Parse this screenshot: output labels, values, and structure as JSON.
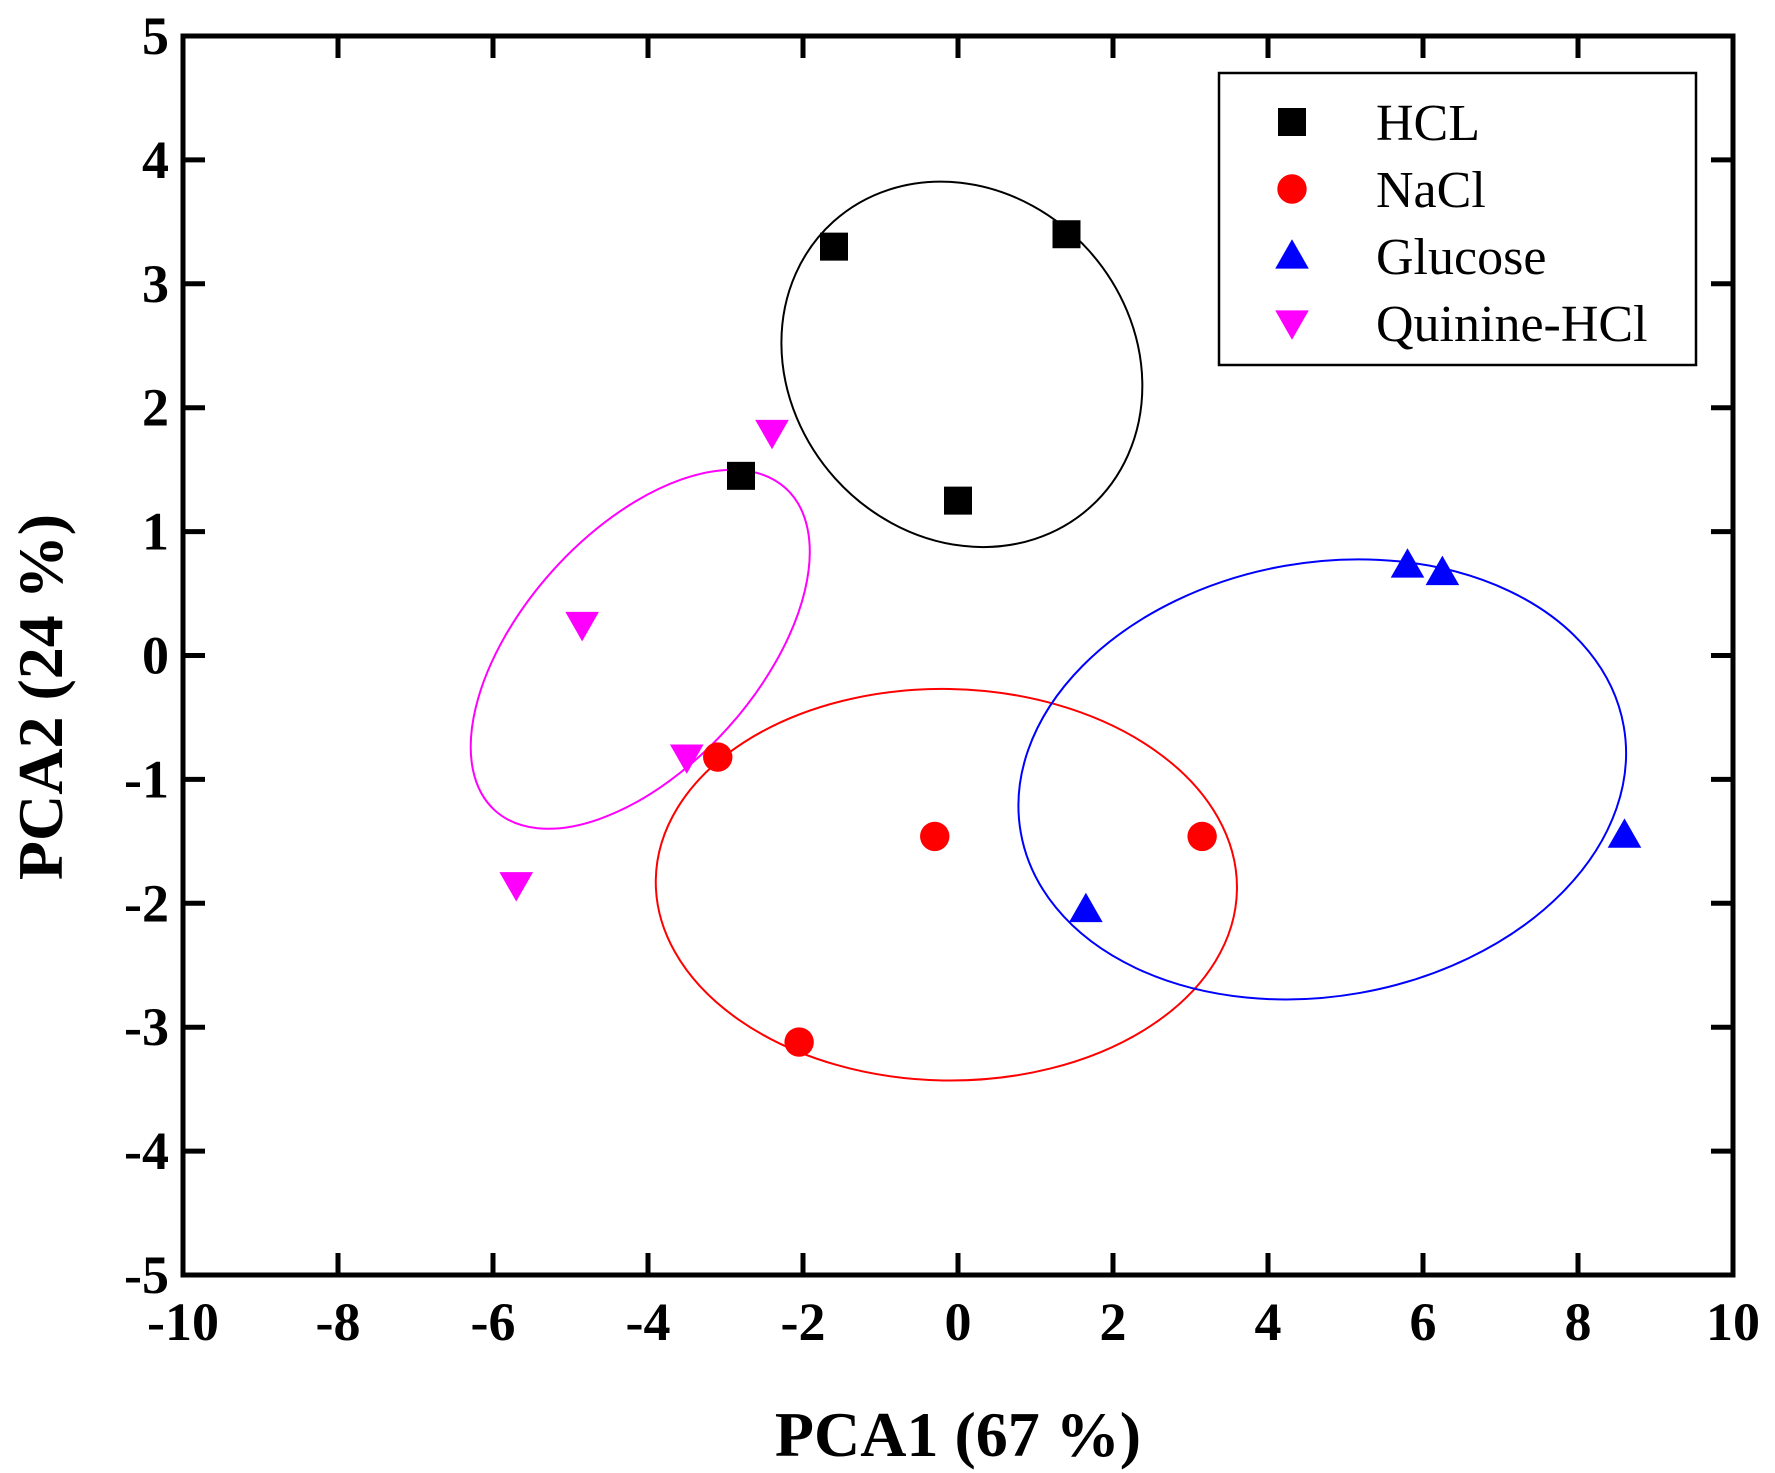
{
  "chart_data": {
    "type": "scatter",
    "title": "",
    "xlabel": "PCA1 (67 %)",
    "ylabel": "PCA2 (24 %)",
    "xlim": [
      -10,
      10
    ],
    "ylim": [
      -5,
      5
    ],
    "xticks": [
      -10,
      -8,
      -6,
      -4,
      -2,
      0,
      2,
      4,
      6,
      8,
      10
    ],
    "yticks": [
      -5,
      -4,
      -3,
      -2,
      -1,
      0,
      1,
      2,
      3,
      4,
      5
    ],
    "xtick_labels": [
      "-10",
      "-8",
      "-6",
      "-4",
      "-2",
      "0",
      "2",
      "4",
      "6",
      "8",
      "10"
    ],
    "ytick_labels": [
      "-5",
      "-4",
      "-3",
      "-2",
      "-1",
      "0",
      "1",
      "2",
      "3",
      "4",
      "5"
    ],
    "grid": false,
    "legend_position": "top-right",
    "series": [
      {
        "name": "HCL",
        "marker": "square",
        "color": "#000000",
        "x": [
          -1.6,
          1.4,
          -2.8,
          0.0
        ],
        "y": [
          3.3,
          3.4,
          1.45,
          1.25
        ],
        "ellipse": {
          "cx": 0.05,
          "cy": 2.35,
          "rx": 2.2,
          "ry": 1.55,
          "angle_deg": 42,
          "color": "#000000"
        }
      },
      {
        "name": "NaCl",
        "marker": "circle",
        "color": "#ff0000",
        "x": [
          -3.1,
          -0.3,
          3.15,
          -2.05
        ],
        "y": [
          -0.82,
          -1.46,
          -1.46,
          -3.12
        ],
        "ellipse": {
          "cx": -0.15,
          "cy": -1.85,
          "rx": 3.75,
          "ry": 1.58,
          "angle_deg": -1,
          "color": "#ff0000"
        }
      },
      {
        "name": "Glucose",
        "marker": "triangle-up",
        "color": "#0000ff",
        "x": [
          5.8,
          6.25,
          8.6,
          1.65
        ],
        "y": [
          0.73,
          0.67,
          -1.45,
          -2.05
        ],
        "ellipse": {
          "cx": 4.7,
          "cy": -1.0,
          "rx": 3.95,
          "ry": 1.75,
          "angle_deg": 10,
          "color": "#0000ff"
        }
      },
      {
        "name": "Quinine-HCl",
        "marker": "triangle-down",
        "color": "#ff00ff",
        "x": [
          -2.4,
          -4.85,
          -3.5,
          -5.7
        ],
        "y": [
          1.8,
          0.25,
          -0.82,
          -1.85
        ],
        "ellipse": {
          "cx": -4.1,
          "cy": 0.05,
          "rx": 2.8,
          "ry": 0.95,
          "angle_deg": 48,
          "color": "#ff00ff"
        }
      }
    ]
  }
}
